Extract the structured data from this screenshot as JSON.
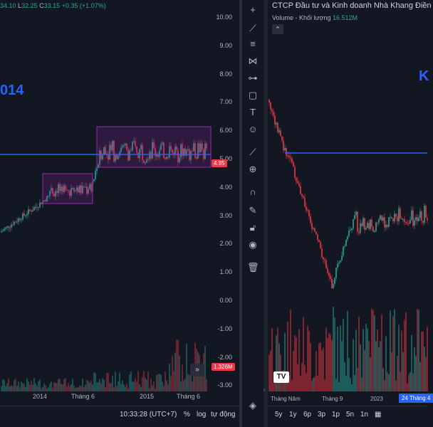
{
  "left_chart": {
    "ohlc": {
      "o": "34.10",
      "l_label": "L",
      "l": "32.25",
      "c_label": "C",
      "c": "33.15",
      "change": "+0.35 (+1.07%)"
    },
    "year_text": "014",
    "y_axis_labels": [
      "10.00",
      "9.00",
      "8.00",
      "7.00",
      "6.00",
      "5.00",
      "4.00",
      "3.00",
      "2.00",
      "1.00",
      "0.00",
      "-1.00",
      "-2.00",
      "-3.00"
    ],
    "price_tag": "4.85",
    "volume_tag": "1.326M",
    "x_axis_labels": [
      "2014",
      "Tháng 6",
      "2015",
      "Tháng 6"
    ],
    "bottom": {
      "time": "10:33:28 (UTC+7)",
      "percent": "%",
      "log": "log",
      "auto": "tự động"
    },
    "colors": {
      "up": "#26a69a",
      "down": "#f23645",
      "hline": "#2962ff",
      "box": "#9c27b0"
    }
  },
  "toolbar": {
    "tools": [
      "crosshair-icon",
      "trendline-icon",
      "fib-icon",
      "pattern-icon",
      "forecast-icon",
      "shapes-icon",
      "text-icon",
      "emoji-icon",
      "ruler-icon",
      "zoom-icon",
      "magnet-icon",
      "lock-draw-icon",
      "lock-icon",
      "eye-icon",
      "trash-icon",
      "layers-icon"
    ]
  },
  "right_chart": {
    "title": "CTCP Đầu tư và Kinh doanh Nhà Khang Điền",
    "volume_label": "Volume - Khối lượng",
    "volume_value": "16.512M",
    "big_text": "K",
    "x_axis_labels": [
      "Tháng Năm",
      "Tháng 9",
      "2023"
    ],
    "date_tag": "24 Tháng 4",
    "ranges": [
      "5y",
      "1y",
      "6p",
      "3p",
      "1p",
      "5n",
      "1n"
    ]
  }
}
